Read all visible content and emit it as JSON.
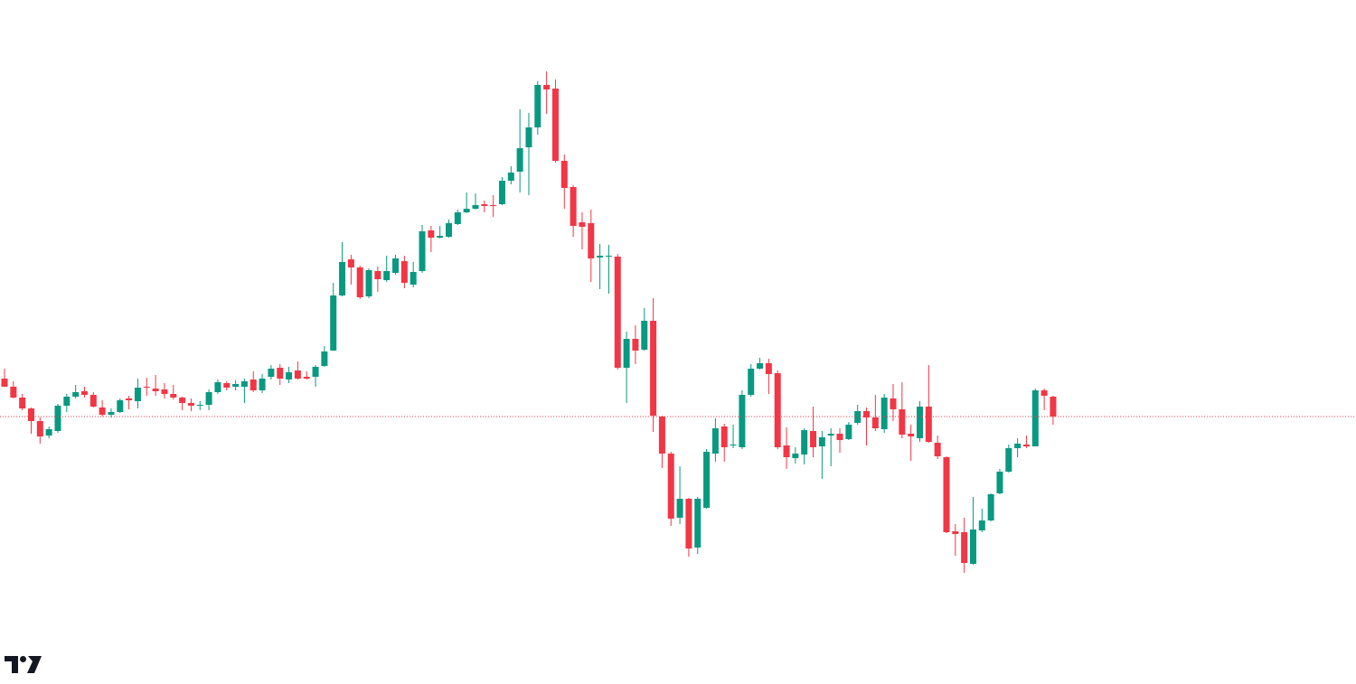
{
  "chart_data": {
    "type": "candlestick",
    "up_color": "#089981",
    "down_color": "#f23645",
    "ylim": [
      0,
      757
    ],
    "last_price_line": true,
    "open": [
      338,
      329,
      317,
      305,
      291,
      275,
      280,
      308,
      318,
      324,
      320,
      306,
      298,
      301,
      316,
      313,
      329,
      327,
      326,
      321,
      317,
      311,
      308,
      309,
      323,
      333,
      329,
      329,
      337,
      325,
      340,
      350,
      337,
      347,
      340,
      340,
      352,
      369,
      430,
      470,
      461,
      429,
      457,
      447,
      455,
      468,
      442,
      457,
      502,
      494,
      495,
      509,
      522,
      526,
      531,
      530,
      531,
      557,
      567,
      594,
      616,
      663,
      659,
      579,
      550,
      511,
      510,
      472,
      473,
      473,
      350,
      382,
      370,
      402,
      296,
      255,
      184,
      205,
      151,
      195,
      255,
      285,
      264,
      262,
      320,
      349,
      355,
      344,
      264,
      250,
      254,
      280,
      263,
      275,
      277,
      271,
      289,
      302,
      295,
      282,
      316,
      304,
      277,
      272,
      307,
      267,
      251,
      169,
      168,
      133,
      170,
      181,
      211,
      235,
      261,
      265,
      263,
      325,
      318
    ],
    "high": [
      349,
      335,
      321,
      306,
      295,
      285,
      310,
      321,
      331,
      329,
      323,
      314,
      305,
      316,
      319,
      338,
      339,
      342,
      333,
      331,
      318,
      316,
      313,
      326,
      337,
      335,
      336,
      338,
      346,
      343,
      353,
      354,
      351,
      357,
      346,
      353,
      374,
      444,
      489,
      475,
      463,
      460,
      462,
      474,
      475,
      474,
      467,
      508,
      507,
      507,
      514,
      525,
      544,
      543,
      535,
      541,
      561,
      573,
      636,
      632,
      667,
      678,
      669,
      586,
      552,
      522,
      525,
      487,
      486,
      476,
      390,
      397,
      416,
      427,
      297,
      257,
      241,
      206,
      207,
      260,
      294,
      288,
      287,
      325,
      354,
      361,
      360,
      347,
      284,
      262,
      283,
      307,
      280,
      283,
      283,
      290,
      309,
      306,
      320,
      321,
      332,
      334,
      287,
      313,
      353,
      275,
      252,
      177,
      184,
      207,
      194,
      211,
      238,
      265,
      272,
      275,
      327,
      327,
      319
    ],
    "low": [
      329,
      316,
      303,
      277,
      266,
      272,
      278,
      301,
      316,
      317,
      306,
      296,
      295,
      300,
      304,
      305,
      319,
      319,
      316,
      315,
      303,
      302,
      303,
      303,
      321,
      325,
      325,
      311,
      323,
      322,
      337,
      331,
      333,
      337,
      337,
      329,
      351,
      369,
      429,
      442,
      426,
      427,
      434,
      445,
      453,
      438,
      439,
      455,
      478,
      493,
      494,
      508,
      521,
      525,
      522,
      517,
      530,
      553,
      544,
      541,
      608,
      631,
      577,
      526,
      495,
      481,
      445,
      437,
      432,
      348,
      311,
      354,
      369,
      279,
      239,
      175,
      177,
      141,
      144,
      194,
      246,
      246,
      261,
      260,
      318,
      348,
      321,
      260,
      238,
      244,
      243,
      251,
      227,
      241,
      256,
      270,
      287,
      264,
      280,
      278,
      291,
      272,
      247,
      268,
      267,
      249,
      167,
      142,
      123,
      132,
      168,
      180,
      210,
      234,
      251,
      261,
      263,
      303,
      287
    ],
    "close": [
      329,
      317,
      305,
      291,
      274,
      282,
      308,
      318,
      323,
      320,
      307,
      298,
      301,
      314,
      314,
      328,
      328,
      324,
      321,
      317,
      311,
      308,
      309,
      323,
      334,
      328,
      332,
      335,
      325,
      338,
      349,
      338,
      345,
      338,
      338,
      351,
      368,
      430,
      467,
      461,
      428,
      458,
      448,
      457,
      471,
      444,
      456,
      501,
      494,
      496,
      510,
      522,
      526,
      530,
      529,
      529,
      557,
      566,
      593,
      616,
      663,
      658,
      579,
      549,
      507,
      506,
      471,
      474,
      474,
      350,
      382,
      369,
      402,
      297,
      255,
      183,
      205,
      150,
      205,
      257,
      283,
      262,
      265,
      320,
      349,
      355,
      343,
      262,
      251,
      255,
      281,
      262,
      273,
      277,
      270,
      287,
      302,
      295,
      283,
      317,
      304,
      276,
      274,
      307,
      268,
      252,
      168,
      166,
      134,
      171,
      181,
      210,
      235,
      261,
      266,
      263,
      325,
      319,
      296
    ]
  }
}
